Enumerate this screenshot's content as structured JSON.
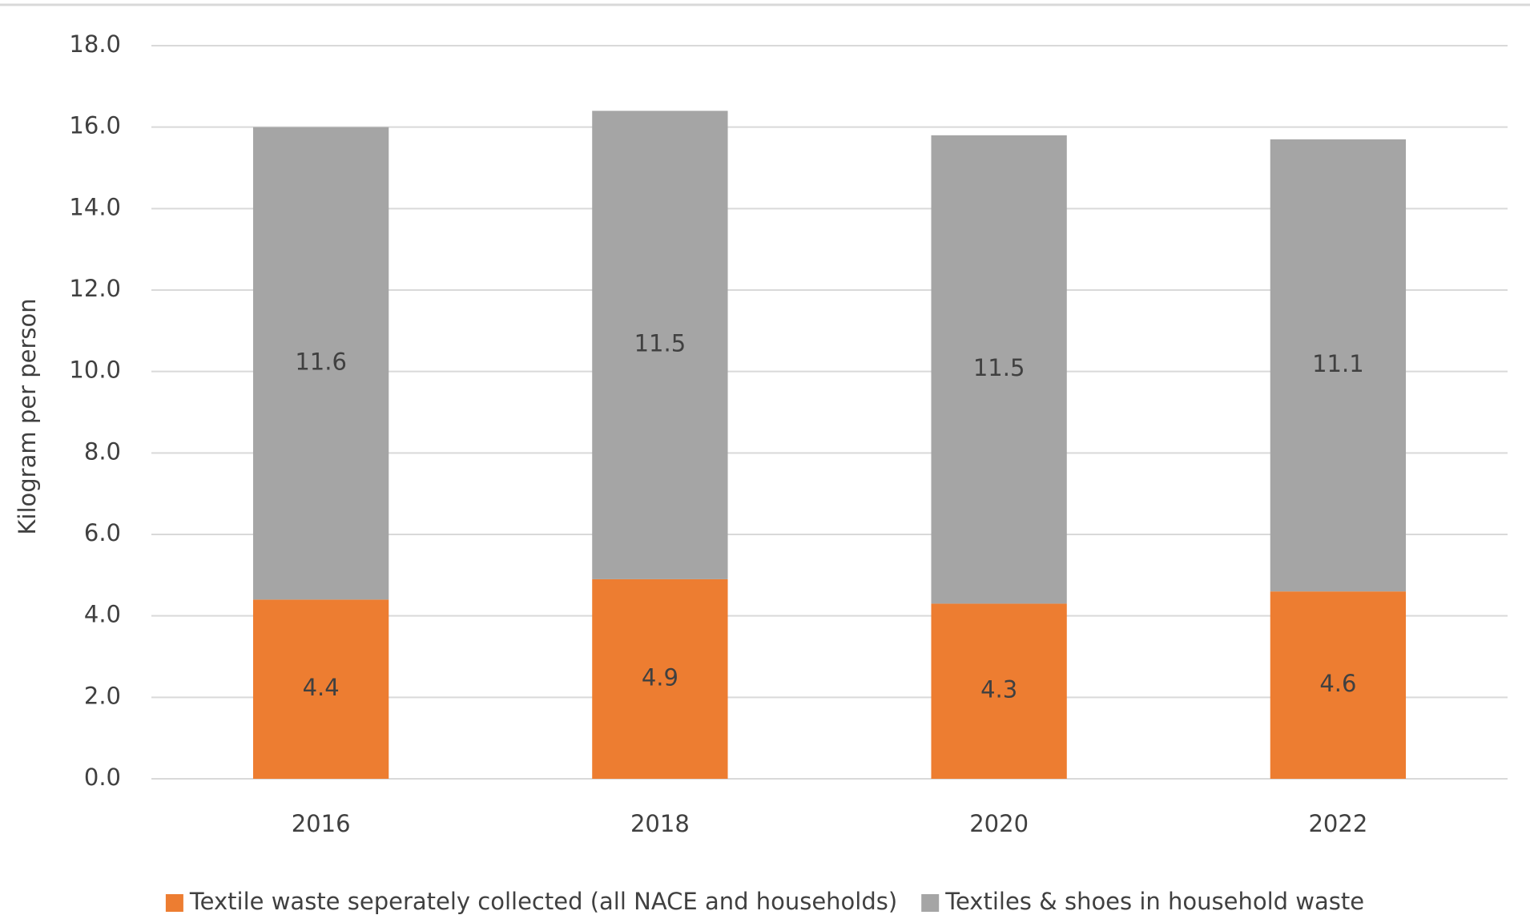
{
  "chart_data": {
    "type": "stacked_bar",
    "y_axis_label": "Kilogram per person",
    "categories": [
      "2016",
      "2018",
      "2020",
      "2022"
    ],
    "series": [
      {
        "name": "Textile waste seperately collected (all NACE and households)",
        "color": "#ed7d31",
        "values": [
          4.4,
          4.9,
          4.3,
          4.6
        ]
      },
      {
        "name": "Textiles & shoes in household waste",
        "color": "#a5a5a5",
        "values": [
          11.6,
          11.5,
          11.5,
          11.1
        ]
      }
    ],
    "ylim": [
      0,
      18
    ],
    "yticks": [
      {
        "value": 0,
        "label": "0.0"
      },
      {
        "value": 2,
        "label": "2.0"
      },
      {
        "value": 4,
        "label": "4.0"
      },
      {
        "value": 6,
        "label": "6.0"
      },
      {
        "value": 8,
        "label": "8.0"
      },
      {
        "value": 10,
        "label": "10.0"
      },
      {
        "value": 12,
        "label": "12.0"
      },
      {
        "value": 14,
        "label": "14.0"
      },
      {
        "value": 16,
        "label": "16.0"
      },
      {
        "value": 18,
        "label": "18.0"
      }
    ],
    "grid": true,
    "legend": "bottom"
  }
}
